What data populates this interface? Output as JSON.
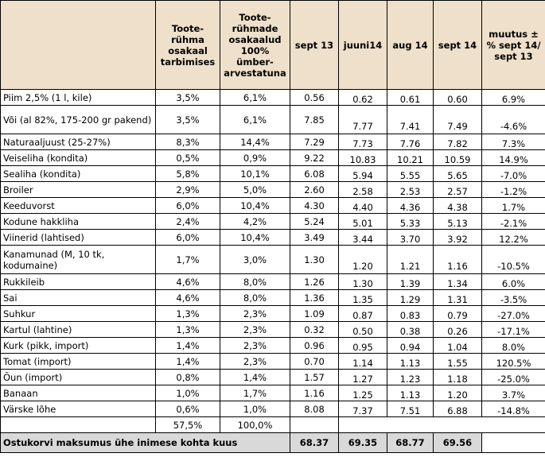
{
  "headers": {
    "product": "",
    "share": "Toote-rühma osakaal tarbimises",
    "share_recalc": "Toote-rühmade osakaalud 100% ümber-arvestatuna",
    "sept13": "sept 13",
    "jun14": "juuni14",
    "aug14": "aug 14",
    "sept14": "sept 14",
    "change": "muutus ± % sept 14/ sept 13"
  },
  "rows": [
    {
      "name": "Piim 2,5% (1 l, kile)",
      "share": "3,5%",
      "recalc": "6,1%",
      "sept13": "0.56",
      "jun14": "0.62",
      "aug14": "0.61",
      "sept14": "0.60",
      "change": "6.9%"
    },
    {
      "name": "Või (al 82%, 175-200 gr pakend)",
      "share": "3,5%",
      "recalc": "6,1%",
      "sept13": "7.85",
      "jun14": "7.77",
      "aug14": "7.41",
      "sept14": "7.49",
      "change": "-4.6%",
      "tall": true
    },
    {
      "name": "Naturaaljuust (25-27%)",
      "share": "8,3%",
      "recalc": "14,4%",
      "sept13": "7.29",
      "jun14": "7.73",
      "aug14": "7.76",
      "sept14": "7.82",
      "change": "7.3%"
    },
    {
      "name": "Veiseliha (kondita)",
      "share": "0,5%",
      "recalc": "0,9%",
      "sept13": "9.22",
      "jun14": "10.83",
      "aug14": "10.21",
      "sept14": "10.59",
      "change": "14.9%"
    },
    {
      "name": "Sealiha (kondita)",
      "share": "5,8%",
      "recalc": "10,1%",
      "sept13": "6.08",
      "jun14": "5.94",
      "aug14": "5.55",
      "sept14": "5.65",
      "change": "-7.0%"
    },
    {
      "name": "Broiler",
      "share": "2,9%",
      "recalc": "5,0%",
      "sept13": "2.60",
      "jun14": "2.58",
      "aug14": "2.53",
      "sept14": "2.57",
      "change": "-1.2%"
    },
    {
      "name": "Keeduvorst",
      "share": "6,0%",
      "recalc": "10,4%",
      "sept13": "4.30",
      "jun14": "4.40",
      "aug14": "4.36",
      "sept14": "4.38",
      "change": "1.7%"
    },
    {
      "name": "Kodune hakkliha",
      "share": "2,4%",
      "recalc": "4,2%",
      "sept13": "5.24",
      "jun14": "5.01",
      "aug14": "5.33",
      "sept14": "5.13",
      "change": "-2.1%"
    },
    {
      "name": "Viinerid (lahtised)",
      "share": "6,0%",
      "recalc": "10,4%",
      "sept13": "3.49",
      "jun14": "3.44",
      "aug14": "3.70",
      "sept14": "3.92",
      "change": "12.2%"
    },
    {
      "name": "Kanamunad (M, 10 tk, kodumaine)",
      "share": "1,7%",
      "recalc": "3,0%",
      "sept13": "1.30",
      "jun14": "1.20",
      "aug14": "1.21",
      "sept14": "1.16",
      "change": "-10.5%",
      "tall": true
    },
    {
      "name": "Rukkileib",
      "share": "4,6%",
      "recalc": "8,0%",
      "sept13": "1.26",
      "jun14": "1.30",
      "aug14": "1.39",
      "sept14": "1.34",
      "change": "6.0%"
    },
    {
      "name": "Sai",
      "share": "4,6%",
      "recalc": "8,0%",
      "sept13": "1.36",
      "jun14": "1.35",
      "aug14": "1.29",
      "sept14": "1.31",
      "change": "-3.5%"
    },
    {
      "name": "Suhkur",
      "share": "1,3%",
      "recalc": "2,3%",
      "sept13": "1.09",
      "jun14": "0.87",
      "aug14": "0.83",
      "sept14": "0.79",
      "change": "-27.0%"
    },
    {
      "name": "Kartul (lahtine)",
      "share": "1,3%",
      "recalc": "2,3%",
      "sept13": "0.32",
      "jun14": "0.50",
      "aug14": "0.38",
      "sept14": "0.26",
      "change": "-17.1%"
    },
    {
      "name": "Kurk (pikk, import)",
      "share": "1,4%",
      "recalc": "2,3%",
      "sept13": "0.96",
      "jun14": "0.95",
      "aug14": "0.94",
      "sept14": "1.04",
      "change": "8.0%"
    },
    {
      "name": "Tomat (import)",
      "share": "1,4%",
      "recalc": "2,3%",
      "sept13": "0.70",
      "jun14": "1.14",
      "aug14": "1.13",
      "sept14": "1.55",
      "change": "120.5%"
    },
    {
      "name": "Õun (import)",
      "share": "0,8%",
      "recalc": "1,4%",
      "sept13": "1.57",
      "jun14": "1.27",
      "aug14": "1.23",
      "sept14": "1.18",
      "change": "-25.0%"
    },
    {
      "name": "Banaan",
      "share": "1,0%",
      "recalc": "1,7%",
      "sept13": "1.16",
      "jun14": "1.25",
      "aug14": "1.13",
      "sept14": "1.20",
      "change": "3.7%"
    },
    {
      "name": "Värske lõhe",
      "share": "0,6%",
      "recalc": "1,0%",
      "sept13": "8.08",
      "jun14": "7.37",
      "aug14": "7.51",
      "sept14": "6.88",
      "change": "-14.8%"
    }
  ],
  "totals": {
    "share": "57,5%",
    "recalc": "100,0%"
  },
  "footer": {
    "label": "Ostukorvi maksumus ühe inimese kohta kuus",
    "sept13": "68.37",
    "jun14": "69.35",
    "aug14": "68.77",
    "sept14": "69.56"
  }
}
